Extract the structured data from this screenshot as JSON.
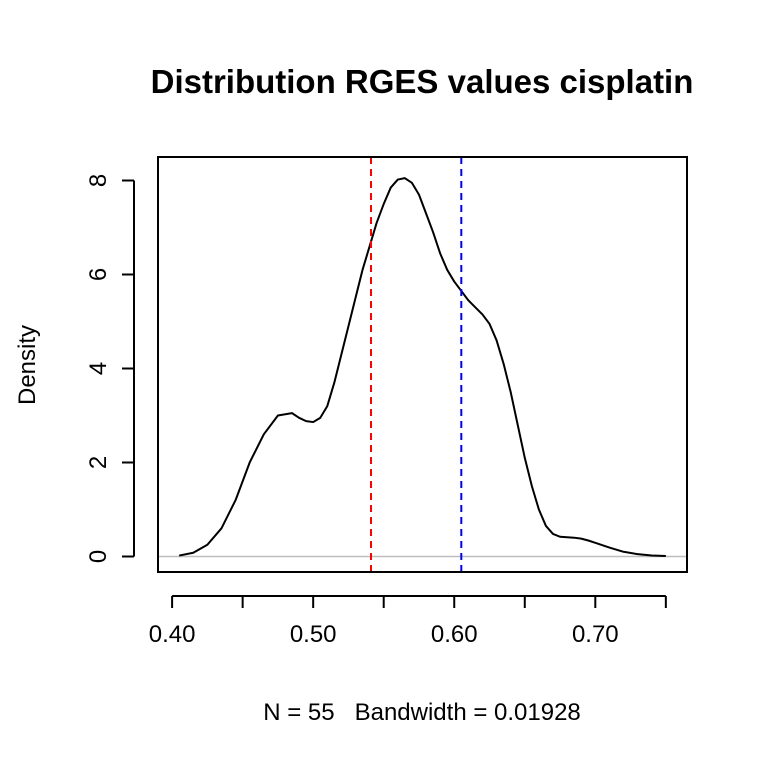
{
  "chart_data": {
    "type": "line",
    "title": "Distribution RGES values cisplatin",
    "xlabel": "N = 55   Bandwidth = 0.01928",
    "ylabel": "Density",
    "xlim": [
      0.39,
      0.765
    ],
    "ylim": [
      -0.33,
      8.5
    ],
    "x_ticks": [
      0.4,
      0.45,
      0.5,
      0.55,
      0.6,
      0.65,
      0.7,
      0.75
    ],
    "x_tick_labels": [
      "0.40",
      "",
      "0.50",
      "",
      "0.60",
      "",
      "0.70",
      ""
    ],
    "y_ticks": [
      0,
      2,
      4,
      6,
      8
    ],
    "y_tick_labels": [
      "0",
      "2",
      "4",
      "6",
      "8"
    ],
    "baseline_y": 0,
    "series": [
      {
        "color": "#000000",
        "x": [
          0.405,
          0.415,
          0.425,
          0.435,
          0.445,
          0.455,
          0.465,
          0.475,
          0.485,
          0.49,
          0.495,
          0.5,
          0.505,
          0.51,
          0.515,
          0.52,
          0.525,
          0.53,
          0.535,
          0.54,
          0.545,
          0.55,
          0.555,
          0.56,
          0.565,
          0.57,
          0.575,
          0.58,
          0.585,
          0.59,
          0.595,
          0.6,
          0.605,
          0.61,
          0.615,
          0.62,
          0.625,
          0.63,
          0.635,
          0.64,
          0.645,
          0.65,
          0.655,
          0.66,
          0.665,
          0.67,
          0.675,
          0.68,
          0.685,
          0.69,
          0.695,
          0.7,
          0.71,
          0.72,
          0.73,
          0.74,
          0.75
        ],
        "y": [
          0.02,
          0.08,
          0.25,
          0.6,
          1.2,
          2.0,
          2.6,
          3.0,
          3.05,
          2.95,
          2.88,
          2.86,
          2.95,
          3.2,
          3.7,
          4.3,
          4.9,
          5.5,
          6.1,
          6.6,
          7.1,
          7.5,
          7.85,
          8.02,
          8.05,
          7.95,
          7.7,
          7.3,
          6.9,
          6.45,
          6.1,
          5.85,
          5.65,
          5.45,
          5.3,
          5.15,
          4.95,
          4.6,
          4.1,
          3.5,
          2.8,
          2.1,
          1.5,
          1.0,
          0.65,
          0.48,
          0.42,
          0.41,
          0.4,
          0.38,
          0.34,
          0.29,
          0.19,
          0.1,
          0.05,
          0.02,
          0.01
        ]
      }
    ],
    "vlines": [
      {
        "x": 0.541,
        "color": "#ff0000",
        "style": "dashed"
      },
      {
        "x": 0.605,
        "color": "#0000ff",
        "style": "dashed"
      }
    ]
  }
}
